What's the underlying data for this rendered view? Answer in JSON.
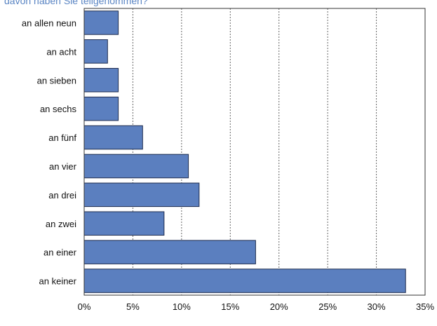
{
  "header": {
    "caption": "davon haben Sie teilgenommen?"
  },
  "chart_data": {
    "type": "bar",
    "orientation": "horizontal",
    "title": "",
    "xlabel": "",
    "ylabel": "",
    "categories": [
      "an allen neun",
      "an acht",
      "an sieben",
      "an sechs",
      "an fünf",
      "an vier",
      "an drei",
      "an zwei",
      "an einer",
      "an keiner"
    ],
    "values": [
      3.5,
      2.4,
      3.5,
      3.5,
      6.0,
      10.7,
      11.8,
      8.2,
      17.6,
      33.0
    ],
    "xlim": [
      0,
      35
    ],
    "x_ticks": [
      "0%",
      "5%",
      "10%",
      "15%",
      "20%",
      "25%",
      "30%",
      "35%"
    ],
    "grid": "vertical-dashed",
    "colors": {
      "bar": "#5b7fbf",
      "bar_border": "#1f2d4f",
      "grid": "#666666",
      "axis": "#333333"
    }
  }
}
